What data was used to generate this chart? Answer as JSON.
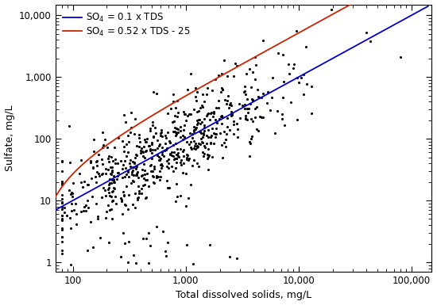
{
  "xlabel": "Total dissolved solids, mg/L",
  "ylabel": "Sulfate, mg/L",
  "xlim_log": [
    70,
    150000
  ],
  "ylim_log": [
    0.7,
    15000
  ],
  "line1_label": "SO$_4$ = 0.1 x TDS",
  "line2_label": "SO$_4$ = 0.52 x TDS - 25",
  "line1_color": "#0000CC",
  "line2_color": "#CC2200",
  "scatter_color": "#000000",
  "scatter_size": 5,
  "background_color": "#ffffff",
  "seed": 12345,
  "n_points": 650,
  "n_outliers": 25
}
